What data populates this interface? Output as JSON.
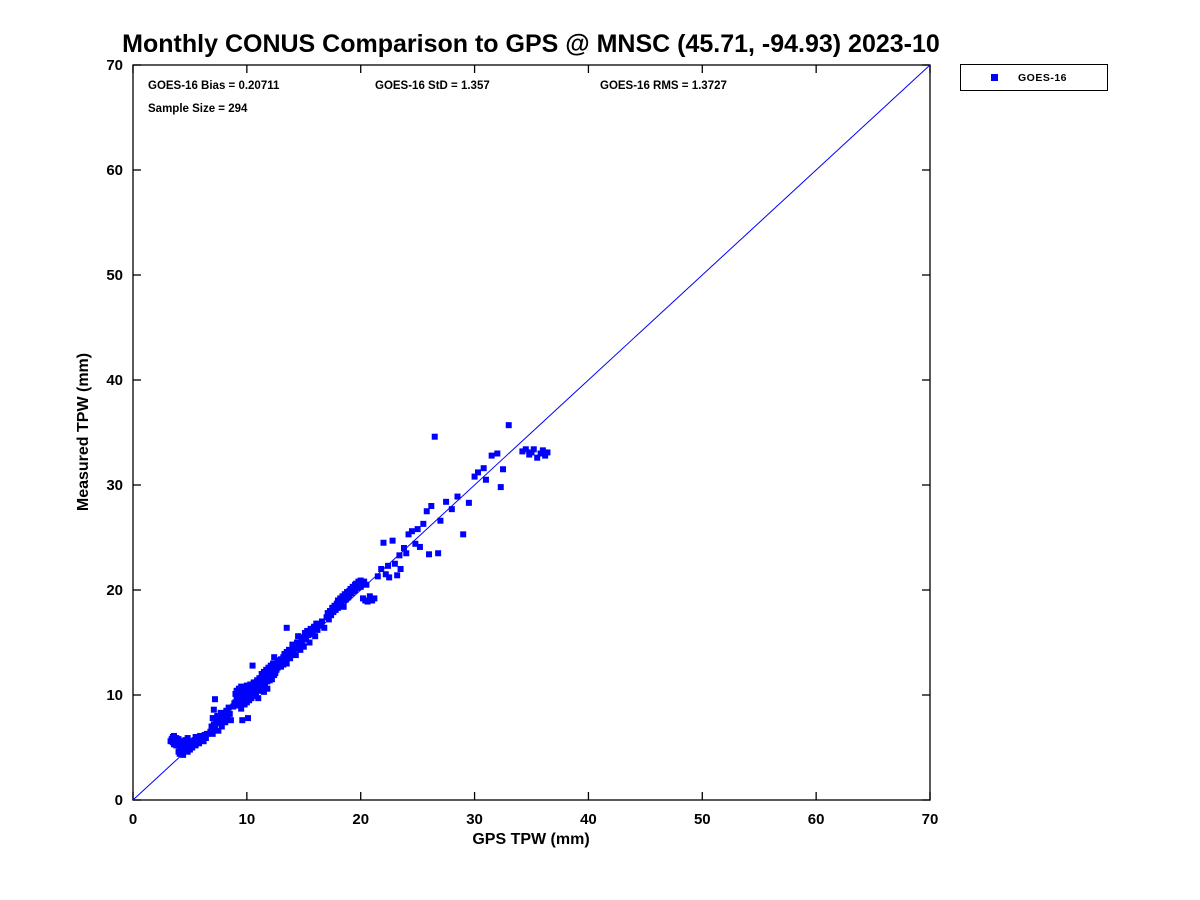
{
  "title": "Monthly CONUS Comparison to GPS @ MNSC (45.71, -94.93) 2023-10",
  "stats": {
    "bias": 0.20711,
    "std": 1.357,
    "rms": 1.3727,
    "sample_size": 294
  },
  "colors": {
    "marker": "#0000ff",
    "reference_line": "#0000ff",
    "axis": "#000000"
  },
  "chart_data": {
    "type": "scatter",
    "title": "Monthly CONUS Comparison to GPS @ MNSC (45.71, -94.93) 2023-10",
    "xlabel": "GPS TPW (mm)",
    "ylabel": "Measured TPW (mm)",
    "xlim": [
      0,
      70
    ],
    "ylim": [
      0,
      70
    ],
    "xticks": [
      0,
      10,
      20,
      30,
      40,
      50,
      60,
      70
    ],
    "yticks": [
      0,
      10,
      20,
      30,
      40,
      50,
      60,
      70
    ],
    "grid": false,
    "legend_position": "outside-top-right",
    "annotations": [
      "GOES-16 Bias = 0.20711",
      "GOES-16 StD = 1.357",
      "GOES-16 RMS = 1.3727",
      "Sample Size = 294"
    ],
    "reference_line": {
      "type": "identity",
      "from": [
        0,
        0
      ],
      "to": [
        70,
        70
      ],
      "color": "#0000ff"
    },
    "series": [
      {
        "name": "GOES-16",
        "marker": "square",
        "color": "#0000ff",
        "points": [
          [
            3.3,
            5.6
          ],
          [
            3.4,
            5.8
          ],
          [
            3.5,
            5.5
          ],
          [
            3.5,
            6.0
          ],
          [
            3.6,
            5.3
          ],
          [
            3.7,
            5.7
          ],
          [
            3.8,
            5.9
          ],
          [
            3.8,
            5.2
          ],
          [
            3.9,
            5.5
          ],
          [
            4.0,
            5.8
          ],
          [
            4.0,
            4.6
          ],
          [
            4.1,
            5.1
          ],
          [
            4.1,
            4.4
          ],
          [
            4.2,
            5.6
          ],
          [
            4.2,
            4.8
          ],
          [
            4.3,
            4.5
          ],
          [
            4.4,
            5.0
          ],
          [
            4.4,
            4.3
          ],
          [
            4.5,
            5.4
          ],
          [
            4.5,
            4.7
          ],
          [
            4.6,
            4.9
          ],
          [
            4.7,
            5.2
          ],
          [
            4.8,
            4.6
          ],
          [
            4.9,
            5.0
          ],
          [
            5.0,
            5.3
          ],
          [
            5.0,
            4.8
          ],
          [
            5.1,
            5.6
          ],
          [
            5.2,
            5.0
          ],
          [
            5.3,
            5.4
          ],
          [
            5.4,
            5.7
          ],
          [
            5.5,
            5.2
          ],
          [
            5.5,
            6.0
          ],
          [
            5.6,
            5.5
          ],
          [
            5.7,
            5.8
          ],
          [
            5.8,
            5.4
          ],
          [
            5.9,
            6.1
          ],
          [
            6.0,
            5.7
          ],
          [
            6.1,
            6.0
          ],
          [
            6.2,
            5.6
          ],
          [
            6.3,
            6.2
          ],
          [
            6.4,
            5.9
          ],
          [
            6.5,
            6.3
          ],
          [
            4.6,
            5.7
          ],
          [
            3.6,
            6.1
          ],
          [
            4.8,
            5.9
          ],
          [
            6.8,
            6.5
          ],
          [
            6.9,
            7.0
          ],
          [
            7.0,
            6.3
          ],
          [
            7.0,
            7.8
          ],
          [
            7.1,
            7.2
          ],
          [
            7.1,
            8.6
          ],
          [
            7.2,
            6.8
          ],
          [
            7.2,
            9.6
          ],
          [
            7.3,
            7.5
          ],
          [
            7.4,
            8.0
          ],
          [
            7.5,
            6.6
          ],
          [
            7.5,
            7.9
          ],
          [
            7.6,
            7.3
          ],
          [
            7.7,
            8.3
          ],
          [
            7.8,
            7.0
          ],
          [
            7.9,
            7.6
          ],
          [
            8.0,
            8.1
          ],
          [
            8.1,
            7.4
          ],
          [
            8.2,
            8.5
          ],
          [
            8.3,
            7.8
          ],
          [
            8.4,
            8.8
          ],
          [
            8.5,
            8.2
          ],
          [
            8.6,
            7.6
          ],
          [
            8.8,
            8.9
          ],
          [
            8.9,
            9.2
          ],
          [
            9.0,
            9.3
          ],
          [
            9.0,
            10.1
          ],
          [
            9.1,
            9.6
          ],
          [
            9.1,
            10.4
          ],
          [
            9.2,
            9.0
          ],
          [
            9.2,
            10.0
          ],
          [
            9.3,
            9.8
          ],
          [
            9.3,
            10.6
          ],
          [
            9.4,
            9.2
          ],
          [
            9.4,
            10.3
          ],
          [
            9.5,
            9.7
          ],
          [
            9.5,
            10.8
          ],
          [
            9.5,
            8.7
          ],
          [
            9.6,
            10.0
          ],
          [
            9.6,
            9.4
          ],
          [
            9.7,
            10.5
          ],
          [
            9.7,
            9.9
          ],
          [
            9.8,
            10.2
          ],
          [
            9.8,
            9.1
          ],
          [
            9.9,
            10.7
          ],
          [
            9.9,
            9.6
          ],
          [
            10.0,
            10.0
          ],
          [
            10.0,
            10.9
          ],
          [
            10.0,
            9.3
          ],
          [
            10.1,
            10.4
          ],
          [
            10.1,
            9.8
          ],
          [
            10.2,
            10.6
          ],
          [
            10.2,
            9.5
          ],
          [
            10.3,
            10.1
          ],
          [
            10.3,
            11.0
          ],
          [
            10.4,
            10.5
          ],
          [
            10.4,
            9.7
          ],
          [
            10.5,
            10.8
          ],
          [
            10.5,
            10.0
          ],
          [
            10.6,
            10.3
          ],
          [
            10.6,
            11.2
          ],
          [
            10.7,
            10.6
          ],
          [
            10.7,
            9.9
          ],
          [
            10.8,
            11.0
          ],
          [
            10.8,
            10.2
          ],
          [
            10.9,
            10.7
          ],
          [
            10.9,
            11.4
          ],
          [
            11.0,
            10.4
          ],
          [
            11.0,
            11.1
          ],
          [
            11.1,
            10.8
          ],
          [
            11.1,
            11.6
          ],
          [
            11.2,
            11.0
          ],
          [
            11.2,
            10.5
          ],
          [
            11.3,
            11.3
          ],
          [
            11.3,
            12.0
          ],
          [
            11.4,
            10.9
          ],
          [
            11.4,
            11.7
          ],
          [
            11.5,
            11.2
          ],
          [
            11.5,
            12.2
          ],
          [
            11.6,
            11.5
          ],
          [
            11.6,
            10.8
          ],
          [
            11.7,
            11.9
          ],
          [
            11.7,
            12.4
          ],
          [
            11.8,
            11.3
          ],
          [
            11.8,
            12.1
          ],
          [
            11.9,
            11.7
          ],
          [
            11.9,
            12.6
          ],
          [
            12.0,
            11.4
          ],
          [
            12.0,
            12.3
          ],
          [
            12.1,
            11.8
          ],
          [
            12.1,
            12.8
          ],
          [
            12.2,
            12.0
          ],
          [
            12.2,
            11.5
          ],
          [
            12.3,
            12.5
          ],
          [
            12.3,
            13.0
          ],
          [
            12.4,
            12.2
          ],
          [
            12.4,
            11.9
          ],
          [
            12.5,
            12.7
          ],
          [
            12.5,
            12.1
          ],
          [
            12.6,
            12.9
          ],
          [
            12.6,
            12.4
          ],
          [
            12.7,
            13.1
          ],
          [
            12.7,
            12.6
          ],
          [
            12.8,
            12.8
          ],
          [
            12.8,
            13.3
          ],
          [
            12.9,
            13.0
          ],
          [
            13.0,
            12.7
          ],
          [
            13.0,
            13.4
          ],
          [
            9.6,
            7.6
          ],
          [
            10.1,
            7.8
          ],
          [
            11.0,
            9.7
          ],
          [
            11.5,
            10.3
          ],
          [
            10.5,
            12.8
          ],
          [
            11.8,
            10.6
          ],
          [
            12.4,
            13.6
          ],
          [
            13.1,
            13.2
          ],
          [
            13.2,
            13.6
          ],
          [
            13.2,
            12.9
          ],
          [
            13.3,
            13.9
          ],
          [
            13.4,
            13.3
          ],
          [
            13.5,
            14.1
          ],
          [
            13.5,
            13.0
          ],
          [
            13.6,
            13.7
          ],
          [
            13.7,
            14.3
          ],
          [
            13.8,
            13.5
          ],
          [
            13.5,
            16.4
          ],
          [
            14.0,
            13.9
          ],
          [
            14.0,
            14.8
          ],
          [
            14.1,
            14.2
          ],
          [
            14.2,
            14.5
          ],
          [
            14.3,
            13.8
          ],
          [
            14.4,
            15.0
          ],
          [
            14.5,
            14.4
          ],
          [
            14.5,
            15.6
          ],
          [
            14.6,
            14.9
          ],
          [
            14.7,
            14.3
          ],
          [
            14.8,
            15.2
          ],
          [
            14.9,
            14.7
          ],
          [
            15.0,
            15.5
          ],
          [
            15.0,
            14.6
          ],
          [
            15.1,
            15.9
          ],
          [
            15.2,
            15.3
          ],
          [
            15.3,
            16.1
          ],
          [
            15.4,
            15.7
          ],
          [
            15.5,
            15.0
          ],
          [
            15.6,
            16.3
          ],
          [
            15.7,
            15.8
          ],
          [
            15.8,
            16.0
          ],
          [
            15.9,
            16.5
          ],
          [
            16.0,
            15.6
          ],
          [
            16.1,
            16.8
          ],
          [
            16.2,
            16.2
          ],
          [
            16.4,
            16.6
          ],
          [
            16.6,
            17.0
          ],
          [
            16.8,
            16.4
          ],
          [
            17.0,
            17.4
          ],
          [
            17.1,
            17.8
          ],
          [
            17.2,
            17.2
          ],
          [
            17.3,
            18.0
          ],
          [
            17.4,
            17.6
          ],
          [
            17.5,
            18.3
          ],
          [
            17.6,
            17.9
          ],
          [
            17.7,
            18.5
          ],
          [
            17.8,
            18.1
          ],
          [
            17.9,
            18.7
          ],
          [
            18.0,
            18.3
          ],
          [
            18.0,
            19.0
          ],
          [
            18.1,
            18.6
          ],
          [
            18.2,
            19.2
          ],
          [
            18.3,
            18.8
          ],
          [
            18.4,
            19.4
          ],
          [
            18.5,
            19.0
          ],
          [
            18.5,
            18.4
          ],
          [
            18.6,
            19.6
          ],
          [
            18.7,
            19.1
          ],
          [
            18.8,
            19.8
          ],
          [
            18.9,
            19.3
          ],
          [
            19.0,
            19.9
          ],
          [
            19.0,
            19.5
          ],
          [
            19.1,
            20.1
          ],
          [
            19.2,
            19.7
          ],
          [
            19.3,
            20.3
          ],
          [
            19.4,
            19.9
          ],
          [
            19.5,
            20.5
          ],
          [
            19.5,
            20.0
          ],
          [
            19.6,
            20.6
          ],
          [
            19.7,
            20.2
          ],
          [
            19.8,
            20.8
          ],
          [
            19.9,
            20.4
          ],
          [
            20.0,
            20.9
          ],
          [
            20.0,
            20.3
          ],
          [
            20.1,
            20.6
          ],
          [
            20.2,
            19.2
          ],
          [
            20.3,
            20.8
          ],
          [
            20.4,
            19.0
          ],
          [
            20.5,
            20.5
          ],
          [
            20.6,
            18.9
          ],
          [
            20.8,
            19.4
          ],
          [
            21.0,
            19.0
          ],
          [
            21.2,
            19.2
          ],
          [
            21.5,
            21.3
          ],
          [
            21.8,
            22.0
          ],
          [
            22.0,
            24.5
          ],
          [
            22.2,
            21.5
          ],
          [
            22.4,
            22.3
          ],
          [
            22.5,
            21.2
          ],
          [
            22.8,
            24.7
          ],
          [
            23.0,
            22.5
          ],
          [
            23.2,
            21.4
          ],
          [
            23.4,
            23.3
          ],
          [
            23.5,
            22.0
          ],
          [
            23.8,
            24.0
          ],
          [
            24.0,
            23.5
          ],
          [
            24.2,
            25.3
          ],
          [
            24.5,
            25.6
          ],
          [
            24.8,
            24.4
          ],
          [
            25.0,
            25.8
          ],
          [
            25.2,
            24.1
          ],
          [
            25.5,
            26.3
          ],
          [
            25.8,
            27.5
          ],
          [
            26.0,
            23.4
          ],
          [
            26.2,
            28.0
          ],
          [
            26.5,
            34.6
          ],
          [
            26.8,
            23.5
          ],
          [
            27.0,
            26.6
          ],
          [
            27.5,
            28.4
          ],
          [
            28.0,
            27.7
          ],
          [
            28.5,
            28.9
          ],
          [
            29.0,
            25.3
          ],
          [
            29.5,
            28.3
          ],
          [
            30.0,
            30.8
          ],
          [
            30.3,
            31.2
          ],
          [
            30.8,
            31.6
          ],
          [
            31.0,
            30.5
          ],
          [
            31.5,
            32.8
          ],
          [
            32.0,
            33.0
          ],
          [
            32.3,
            29.8
          ],
          [
            32.5,
            31.5
          ],
          [
            33.0,
            35.7
          ],
          [
            34.2,
            33.2
          ],
          [
            34.5,
            33.4
          ],
          [
            34.8,
            32.9
          ],
          [
            35.0,
            33.1
          ],
          [
            35.2,
            33.4
          ],
          [
            35.5,
            32.6
          ],
          [
            35.8,
            33.0
          ],
          [
            36.0,
            33.3
          ],
          [
            36.2,
            32.8
          ],
          [
            36.4,
            33.1
          ]
        ]
      }
    ]
  }
}
